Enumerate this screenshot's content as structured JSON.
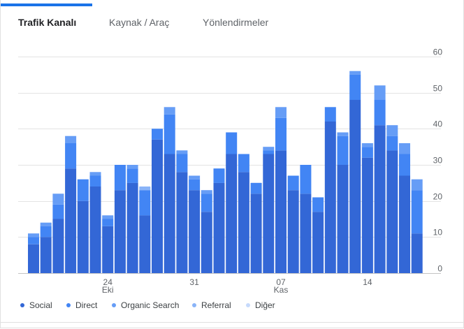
{
  "tabs": [
    {
      "label": "Trafik Kanalı",
      "active": true
    },
    {
      "label": "Kaynak / Araç",
      "active": false
    },
    {
      "label": "Yönlendirmeler",
      "active": false
    }
  ],
  "colors": {
    "Social": "#3367d6",
    "Direct": "#4285f4",
    "Organic Search": "#669df6",
    "Referral": "#8ab4f8",
    "Diğer": "#c6dafc",
    "tab_accent": "#1a73e8"
  },
  "chart_data": {
    "type": "bar",
    "stacked": true,
    "y_axis_position": "right",
    "ylim": [
      0,
      60
    ],
    "y_ticks": [
      "0",
      "10",
      "20",
      "30",
      "40",
      "50",
      "60"
    ],
    "grid": true,
    "legend_position": "bottom-left",
    "x_ticks": [
      {
        "index": 6,
        "label": "24",
        "sublabel": "Eki"
      },
      {
        "index": 13,
        "label": "31",
        "sublabel": ""
      },
      {
        "index": 20,
        "label": "07",
        "sublabel": "Kas"
      },
      {
        "index": 27,
        "label": "14",
        "sublabel": ""
      }
    ],
    "series": [
      {
        "name": "Social",
        "values": [
          8,
          10,
          15,
          29,
          20,
          24,
          13,
          23,
          25,
          16,
          37,
          33,
          28,
          23,
          17,
          25,
          33,
          28,
          22,
          33,
          34,
          23,
          22,
          17,
          42,
          30,
          48,
          32,
          41,
          34,
          27,
          11
        ]
      },
      {
        "name": "Direct",
        "values": [
          2,
          3,
          4,
          7,
          6,
          3,
          2,
          7,
          4,
          7,
          3,
          11,
          5,
          3,
          5,
          4,
          6,
          5,
          3,
          1,
          9,
          4,
          8,
          4,
          4,
          8,
          7,
          3,
          7,
          4,
          6,
          12
        ]
      },
      {
        "name": "Organic Search",
        "values": [
          1,
          1,
          3,
          2,
          0,
          1,
          1,
          0,
          1,
          0,
          0,
          2,
          1,
          1,
          1,
          0,
          0,
          0,
          0,
          1,
          3,
          0,
          0,
          0,
          0,
          1,
          1,
          1,
          4,
          3,
          3,
          3
        ]
      },
      {
        "name": "Referral",
        "values": [
          0,
          0,
          0,
          0,
          0,
          0,
          0,
          0,
          0,
          1,
          0,
          0,
          0,
          0,
          0,
          0,
          0,
          0,
          0,
          0,
          0,
          0,
          0,
          0,
          0,
          0,
          0,
          0,
          0,
          0,
          0,
          0
        ]
      },
      {
        "name": "Diğer",
        "values": [
          0,
          0,
          0,
          0,
          0,
          0,
          0,
          0,
          0,
          0,
          0,
          0,
          0,
          0,
          0,
          0,
          0,
          0,
          0,
          0,
          0,
          0,
          0,
          0,
          0,
          0,
          0,
          0,
          0,
          0,
          0,
          0
        ]
      }
    ]
  },
  "legend": [
    "Social",
    "Direct",
    "Organic Search",
    "Referral",
    "Diğer"
  ]
}
